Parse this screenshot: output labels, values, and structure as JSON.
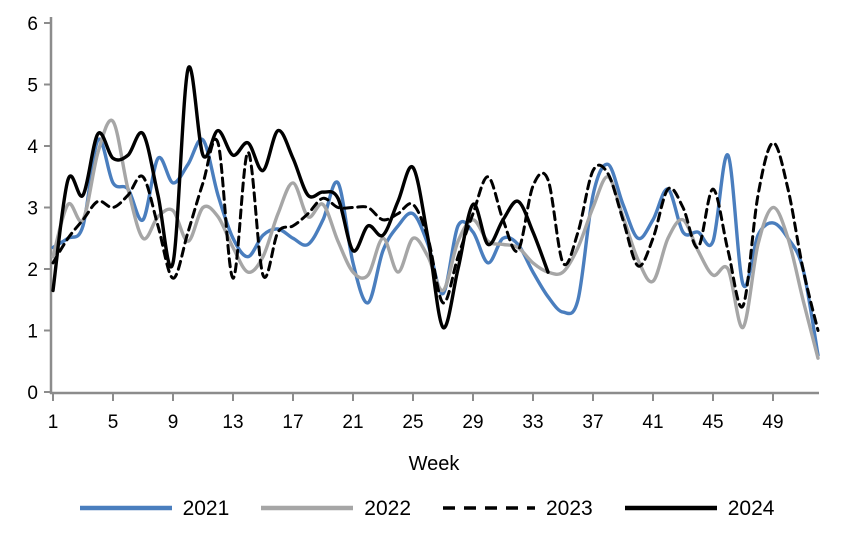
{
  "background": "#FFFFFF",
  "axis_color": "#8C8C8C",
  "chart_data": {
    "type": "line",
    "title": "",
    "xlabel": "Week",
    "ylabel": "",
    "grid": false,
    "legend_position": "bottom",
    "xlim": [
      1,
      52
    ],
    "ylim": [
      0,
      6
    ],
    "y_ticks": [
      0,
      1,
      2,
      3,
      4,
      5,
      6
    ],
    "x_ticks": [
      1,
      5,
      9,
      13,
      17,
      21,
      25,
      29,
      33,
      37,
      41,
      45,
      49
    ],
    "x_unit": "week",
    "series": [
      {
        "name": "2021",
        "color": "#4A7EBE",
        "style": "solid",
        "start_week": 1,
        "values": [
          2.35,
          2.5,
          2.7,
          4.1,
          3.4,
          3.3,
          2.8,
          3.8,
          3.4,
          3.7,
          4.1,
          3.2,
          2.5,
          2.2,
          2.55,
          2.65,
          2.5,
          2.4,
          2.8,
          3.4,
          2.1,
          1.45,
          2.3,
          2.7,
          2.9,
          2.4,
          1.6,
          2.7,
          2.6,
          2.1,
          2.5,
          2.4,
          1.95,
          1.55,
          1.3,
          1.5,
          3.2,
          3.7,
          3.05,
          2.5,
          2.8,
          3.3,
          2.6,
          2.6,
          2.45,
          3.85,
          1.75,
          2.55,
          2.75,
          2.5,
          2.0,
          0.6
        ]
      },
      {
        "name": "2022",
        "color": "#A6A6A6",
        "style": "solid",
        "start_week": 1,
        "values": [
          2.2,
          3.05,
          2.8,
          3.9,
          4.4,
          3.3,
          2.5,
          2.85,
          2.95,
          2.45,
          3.0,
          2.85,
          2.35,
          1.95,
          2.2,
          2.9,
          3.4,
          2.85,
          3.05,
          2.45,
          1.95,
          1.9,
          2.5,
          1.95,
          2.5,
          2.2,
          1.65,
          2.45,
          2.8,
          2.45,
          2.4,
          2.35,
          2.1,
          1.95,
          1.95,
          2.35,
          3.0,
          3.5,
          2.85,
          2.15,
          1.8,
          2.5,
          2.8,
          2.3,
          1.9,
          2.0,
          1.05,
          2.4,
          3.0,
          2.5,
          1.5,
          0.55
        ]
      },
      {
        "name": "2023",
        "color": "#000000",
        "style": "dashed",
        "start_week": 1,
        "values": [
          2.1,
          2.5,
          2.8,
          3.1,
          3.0,
          3.2,
          3.5,
          2.7,
          1.85,
          2.6,
          3.4,
          4.05,
          1.85,
          3.9,
          1.9,
          2.6,
          2.7,
          2.9,
          3.15,
          3.0,
          3.0,
          3.0,
          2.8,
          2.9,
          3.05,
          2.5,
          1.45,
          2.2,
          2.9,
          3.5,
          2.8,
          2.3,
          3.35,
          3.45,
          2.1,
          2.6,
          3.6,
          3.55,
          2.8,
          2.05,
          2.5,
          3.3,
          3.0,
          2.35,
          3.3,
          2.3,
          1.4,
          3.2,
          4.05,
          3.3,
          2.0,
          1.0
        ]
      },
      {
        "name": "2024",
        "color": "#000000",
        "style": "solid",
        "start_week": 1,
        "values": [
          1.65,
          3.45,
          3.2,
          4.2,
          3.8,
          3.85,
          4.2,
          3.2,
          2.1,
          5.25,
          3.85,
          4.25,
          3.85,
          4.05,
          3.6,
          4.25,
          3.8,
          3.2,
          3.25,
          3.15,
          2.3,
          2.7,
          2.55,
          3.1,
          3.65,
          2.5,
          1.05,
          2.0,
          3.05,
          2.4,
          2.8,
          3.1,
          2.6,
          1.95
        ]
      }
    ]
  }
}
